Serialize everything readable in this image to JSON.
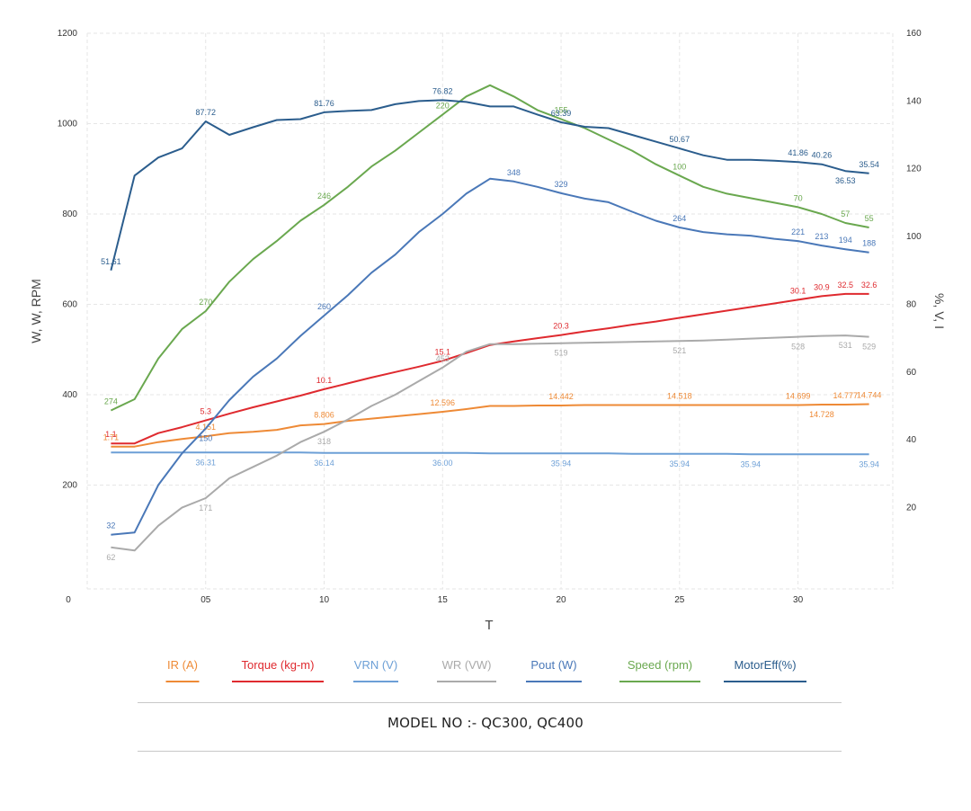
{
  "chart_data": {
    "type": "line",
    "xlabel": "T",
    "ylabel_left": "W, W, RPM",
    "ylabel_right": "%, V, I",
    "x_ticks": [
      {
        "v": 5,
        "label": "05"
      },
      {
        "v": 10,
        "label": "10"
      },
      {
        "v": 15,
        "label": "15"
      },
      {
        "v": 20,
        "label": "20"
      },
      {
        "v": 25,
        "label": "25"
      },
      {
        "v": 30,
        "label": "30"
      }
    ],
    "left_ticks": [
      {
        "v": 0,
        "label": "0"
      },
      {
        "v": 200,
        "label": "200"
      },
      {
        "v": 400,
        "label": "400"
      },
      {
        "v": 600,
        "label": "600"
      },
      {
        "v": 800,
        "label": "800"
      },
      {
        "v": 1000,
        "label": "1000"
      },
      {
        "v": 1200,
        "label": "1200"
      }
    ],
    "right_ticks": [
      {
        "v": 20,
        "label": "20"
      },
      {
        "v": 40,
        "label": "40"
      },
      {
        "v": 60,
        "label": "60"
      },
      {
        "v": 80,
        "label": "80"
      },
      {
        "v": 100,
        "label": "100"
      },
      {
        "v": 120,
        "label": "120"
      },
      {
        "v": 140,
        "label": "140"
      },
      {
        "v": 160,
        "label": "160"
      }
    ],
    "xlim": [
      0,
      34
    ],
    "ylim_left": [
      -30,
      1200
    ],
    "ylim_right": [
      -4,
      160
    ],
    "grid": true,
    "legend_position": "bottom",
    "series": [
      {
        "name": "IR (A)",
        "color": "#ee8a36",
        "axis": "left",
        "x": [
          1,
          2,
          3,
          4,
          5,
          6,
          7,
          8,
          9,
          10,
          11,
          12,
          13,
          14,
          15,
          16,
          17,
          18,
          19,
          20,
          21,
          22,
          23,
          24,
          25,
          26,
          27,
          28,
          29,
          30,
          31,
          32,
          33
        ],
        "y": [
          285,
          285,
          295,
          302,
          308,
          315,
          318,
          322,
          332,
          335,
          342,
          347,
          352,
          357,
          362,
          368,
          375,
          375,
          376,
          376,
          377,
          377,
          377,
          377,
          377,
          377,
          377,
          377,
          377,
          377,
          378,
          378,
          379
        ],
        "labels": [
          {
            "i": 0,
            "text": "1.71"
          },
          {
            "i": 4,
            "text": "4.151"
          },
          {
            "i": 9,
            "text": "8.806"
          },
          {
            "i": 14,
            "text": "12.596"
          },
          {
            "i": 19,
            "text": "14.442"
          },
          {
            "i": 24,
            "text": "14.518"
          },
          {
            "i": 29,
            "text": "14.699"
          },
          {
            "i": 30,
            "text": "14.728",
            "below": true
          },
          {
            "i": 31,
            "text": "14.777"
          },
          {
            "i": 32,
            "text": "14.744"
          }
        ]
      },
      {
        "name": "Torque (kg-m)",
        "color": "#df2a2f",
        "axis": "left",
        "x": [
          1,
          2,
          3,
          4,
          5,
          6,
          7,
          8,
          9,
          10,
          11,
          12,
          13,
          14,
          15,
          16,
          17,
          18,
          19,
          20,
          21,
          22,
          23,
          24,
          25,
          26,
          27,
          28,
          29,
          30,
          31,
          32,
          33
        ],
        "y": [
          292,
          292,
          315,
          328,
          343,
          358,
          372,
          385,
          398,
          412,
          425,
          438,
          450,
          462,
          475,
          492,
          510,
          518,
          525,
          532,
          540,
          547,
          555,
          562,
          570,
          578,
          586,
          594,
          602,
          610,
          618,
          623,
          623
        ],
        "labels": [
          {
            "i": 0,
            "text": "1.1"
          },
          {
            "i": 4,
            "text": "5.3"
          },
          {
            "i": 9,
            "text": "10.1"
          },
          {
            "i": 14,
            "text": "15.1"
          },
          {
            "i": 19,
            "text": "20.3"
          },
          {
            "i": 29,
            "text": "30.1"
          },
          {
            "i": 30,
            "text": "30.9"
          },
          {
            "i": 31,
            "text": "32.5"
          },
          {
            "i": 32,
            "text": "32.6"
          }
        ]
      },
      {
        "name": "VRN (V)",
        "color": "#6c9fd6",
        "axis": "left",
        "x": [
          1,
          2,
          3,
          4,
          5,
          6,
          7,
          8,
          9,
          10,
          11,
          12,
          13,
          14,
          15,
          16,
          17,
          18,
          19,
          20,
          21,
          22,
          23,
          24,
          25,
          26,
          27,
          28,
          29,
          30,
          31,
          32,
          33
        ],
        "y": [
          272,
          272,
          272,
          272,
          272,
          272,
          272,
          272,
          272,
          271,
          271,
          271,
          271,
          271,
          271,
          271,
          270,
          270,
          270,
          270,
          270,
          270,
          269,
          269,
          269,
          269,
          269,
          268,
          268,
          268,
          268,
          268,
          268
        ],
        "labels": [
          {
            "i": 4,
            "text": "36.31",
            "below": true
          },
          {
            "i": 9,
            "text": "36.14",
            "below": true
          },
          {
            "i": 14,
            "text": "36.00",
            "below": true
          },
          {
            "i": 19,
            "text": "35.94",
            "below": true
          },
          {
            "i": 24,
            "text": "35.94",
            "below": true
          },
          {
            "i": 27,
            "text": "35.94",
            "below": true
          },
          {
            "i": 32,
            "text": "35.94",
            "below": true
          }
        ]
      },
      {
        "name": "WR (VW)",
        "color": "#aaaaaa",
        "axis": "left",
        "x": [
          1,
          2,
          3,
          4,
          5,
          6,
          7,
          8,
          9,
          10,
          11,
          12,
          13,
          14,
          15,
          16,
          17,
          18,
          19,
          20,
          21,
          22,
          23,
          24,
          25,
          26,
          27,
          28,
          29,
          30,
          31,
          32,
          33
        ],
        "y": [
          62,
          55,
          110,
          150,
          171,
          215,
          240,
          265,
          295,
          318,
          345,
          375,
          400,
          430,
          460,
          495,
          512,
          512,
          513,
          514,
          515,
          516,
          517,
          518,
          519,
          520,
          522,
          524,
          526,
          528,
          530,
          531,
          528
        ],
        "labels": [
          {
            "i": 0,
            "text": "62",
            "below": true
          },
          {
            "i": 4,
            "text": "171",
            "below": true
          },
          {
            "i": 9,
            "text": "318",
            "below": true
          },
          {
            "i": 14,
            "text": "453"
          },
          {
            "i": 19,
            "text": "519",
            "below": true
          },
          {
            "i": 24,
            "text": "521",
            "below": true
          },
          {
            "i": 29,
            "text": "528",
            "below": true
          },
          {
            "i": 31,
            "text": "531",
            "below": true
          },
          {
            "i": 32,
            "text": "529",
            "below": true
          }
        ]
      },
      {
        "name": "Pout (W)",
        "color": "#4a78b8",
        "axis": "left",
        "x": [
          1,
          2,
          3,
          4,
          5,
          6,
          7,
          8,
          9,
          10,
          11,
          12,
          13,
          14,
          15,
          16,
          17,
          18,
          19,
          20,
          21,
          22,
          23,
          24,
          25,
          26,
          27,
          28,
          29,
          30,
          31,
          32,
          33
        ],
        "y": [
          90,
          95,
          200,
          270,
          325,
          388,
          440,
          480,
          530,
          575,
          620,
          670,
          710,
          760,
          800,
          845,
          878,
          872,
          860,
          846,
          834,
          826,
          805,
          785,
          770,
          760,
          755,
          752,
          745,
          740,
          730,
          722,
          715
        ],
        "labels": [
          {
            "i": 0,
            "text": "32"
          },
          {
            "i": 4,
            "text": "150",
            "below": true
          },
          {
            "i": 9,
            "text": "260"
          },
          {
            "i": 17,
            "text": "348"
          },
          {
            "i": 19,
            "text": "329"
          },
          {
            "i": 24,
            "text": "264"
          },
          {
            "i": 29,
            "text": "221"
          },
          {
            "i": 30,
            "text": "213"
          },
          {
            "i": 31,
            "text": "194"
          },
          {
            "i": 32,
            "text": "188"
          }
        ]
      },
      {
        "name": "Speed (rpm)",
        "color": "#6aa84f",
        "axis": "left",
        "x": [
          1,
          2,
          3,
          4,
          5,
          6,
          7,
          8,
          9,
          10,
          11,
          12,
          13,
          14,
          15,
          16,
          17,
          18,
          19,
          20,
          21,
          22,
          23,
          24,
          25,
          26,
          27,
          28,
          29,
          30,
          31,
          32,
          33
        ],
        "y": [
          365,
          390,
          480,
          545,
          585,
          650,
          700,
          740,
          785,
          820,
          860,
          905,
          940,
          980,
          1020,
          1060,
          1085,
          1060,
          1030,
          1010,
          990,
          965,
          940,
          910,
          885,
          860,
          845,
          835,
          825,
          815,
          800,
          780,
          770
        ],
        "labels": [
          {
            "i": 0,
            "text": "274"
          },
          {
            "i": 4,
            "text": "270"
          },
          {
            "i": 9,
            "text": "246"
          },
          {
            "i": 14,
            "text": "220"
          },
          {
            "i": 19,
            "text": "155"
          },
          {
            "i": 24,
            "text": "100"
          },
          {
            "i": 29,
            "text": "70"
          },
          {
            "i": 31,
            "text": "57"
          },
          {
            "i": 32,
            "text": "55"
          }
        ]
      },
      {
        "name": "MotorEff(%)",
        "color": "#2b5d8d",
        "axis": "left",
        "x": [
          1,
          2,
          3,
          4,
          5,
          6,
          7,
          8,
          9,
          10,
          11,
          12,
          13,
          14,
          15,
          16,
          17,
          18,
          19,
          20,
          21,
          22,
          23,
          24,
          25,
          26,
          27,
          28,
          29,
          30,
          31,
          32,
          33
        ],
        "y": [
          675,
          885,
          925,
          945,
          1005,
          975,
          992,
          1008,
          1010,
          1025,
          1028,
          1030,
          1043,
          1050,
          1052,
          1048,
          1038,
          1038,
          1020,
          1003,
          993,
          990,
          975,
          960,
          945,
          930,
          920,
          920,
          918,
          915,
          910,
          895,
          890
        ],
        "labels": [
          {
            "i": 0,
            "text": "51.61"
          },
          {
            "i": 4,
            "text": "87.72"
          },
          {
            "i": 9,
            "text": "81.76"
          },
          {
            "i": 14,
            "text": "76.82"
          },
          {
            "i": 19,
            "text": "63.39"
          },
          {
            "i": 24,
            "text": "50.67"
          },
          {
            "i": 29,
            "text": "41.86"
          },
          {
            "i": 30,
            "text": "40.26"
          },
          {
            "i": 31,
            "text": "36.53",
            "below": true
          },
          {
            "i": 32,
            "text": "35.54"
          }
        ]
      }
    ]
  },
  "footer": {
    "model_text": "MODEL NO  :- QC300, QC400"
  }
}
